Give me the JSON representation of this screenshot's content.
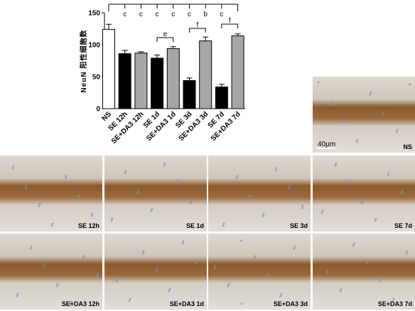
{
  "chart_data": {
    "type": "bar",
    "y_label": "NeuN 阳性细胞数",
    "categories": [
      "NS",
      "SE 12h",
      "SE+DA3 12h",
      "SE 1d",
      "SE+DA3 1d",
      "SE 3d",
      "SE+DA3 3d",
      "SE 7d",
      "SE+DA3 7d"
    ],
    "values": [
      124,
      86,
      87,
      79,
      94,
      44,
      106,
      34,
      114
    ],
    "errors": [
      8,
      5,
      2,
      5,
      3,
      4,
      6,
      4,
      3
    ],
    "colors": [
      "#ffffff",
      "#000000",
      "#a6a6a6",
      "#000000",
      "#a6a6a6",
      "#000000",
      "#a6a6a6",
      "#000000",
      "#a6a6a6"
    ],
    "ylim": [
      0,
      150
    ],
    "yticks": [
      0,
      50,
      100,
      150
    ],
    "top_letters": [
      "c",
      "c",
      "c",
      "c",
      "c",
      "b",
      "c"
    ],
    "pair_letters": [
      "e",
      "f",
      "f"
    ]
  },
  "panels": [
    {
      "label": "NS"
    },
    {
      "label": "SE 12h"
    },
    {
      "label": "SE 1d"
    },
    {
      "label": "SE 3d"
    },
    {
      "label": "SE 7d"
    },
    {
      "label": "SE+DA3 12h"
    },
    {
      "label": "SE+DA3 1d"
    },
    {
      "label": "SE+DA3 3d"
    },
    {
      "label": "SE+DA3 7d"
    }
  ],
  "scale_bar": "40μm"
}
